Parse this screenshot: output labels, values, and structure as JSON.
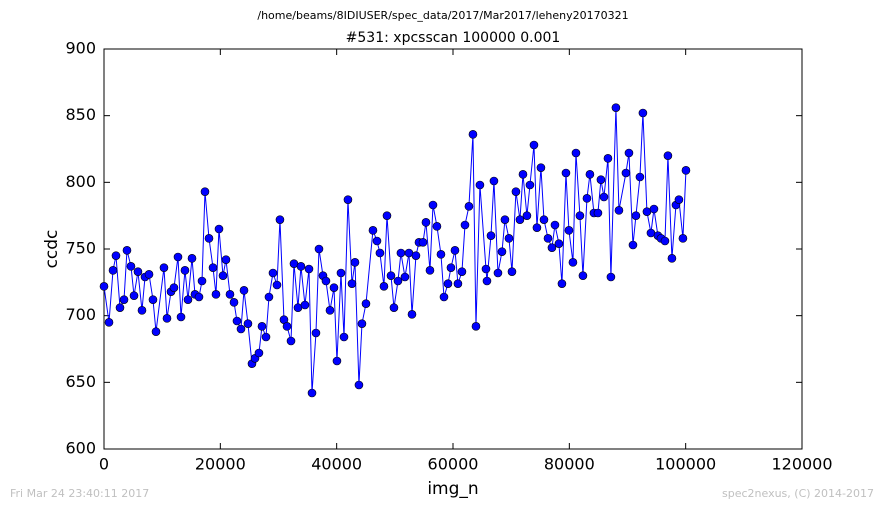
{
  "chart_data": {
    "type": "line",
    "suptitle": "/home/beams/8IDIUSER/spec_data/2017/Mar2017/leheny20170321",
    "title": "#531: xpcsscan 100000 0.001",
    "x_label": "img_n",
    "y_label": "ccdc",
    "xlim": [
      0,
      120000
    ],
    "xticks": [
      0,
      20000,
      40000,
      60000,
      80000,
      100000,
      120000
    ],
    "ylim": [
      600,
      900
    ],
    "yticks": [
      600,
      650,
      700,
      750,
      800,
      850,
      900
    ],
    "x": [
      0,
      860,
      1550,
      2060,
      2750,
      3440,
      3950,
      4640,
      5160,
      5840,
      6530,
      7050,
      7740,
      8420,
      8940,
      10310,
      10830,
      11520,
      12030,
      12720,
      13240,
      13920,
      14440,
      15130,
      15640,
      16330,
      16850,
      17360,
      18050,
      18740,
      19250,
      19770,
      20460,
      20970,
      21660,
      22350,
      22860,
      23550,
      24070,
      24750,
      25440,
      25960,
      26640,
      27160,
      27850,
      28360,
      29050,
      29740,
      30250,
      30940,
      31460,
      32150,
      32660,
      33350,
      33860,
      34550,
      35240,
      35760,
      36440,
      36960,
      37650,
      38160,
      38850,
      39540,
      40050,
      40740,
      41260,
      41940,
      42630,
      43150,
      43830,
      44350,
      45040,
      46240,
      46930,
      47440,
      48130,
      48650,
      49340,
      49850,
      50540,
      51050,
      51740,
      52430,
      52950,
      53630,
      54150,
      54840,
      55350,
      56040,
      56560,
      57240,
      57930,
      58450,
      59140,
      59650,
      60340,
      60850,
      61540,
      62060,
      62740,
      63430,
      63950,
      64630,
      65670,
      65840,
      66530,
      67040,
      67730,
      68420,
      68930,
      69620,
      70140,
      70820,
      71510,
      72030,
      72710,
      73230,
      73920,
      74430,
      75120,
      75640,
      76330,
      77010,
      77530,
      78210,
      78730,
      79420,
      79930,
      80620,
      81140,
      81820,
      82340,
      83030,
      83540,
      84230,
      84920,
      85430,
      85950,
      86640,
      87150,
      88010,
      88530,
      89730,
      90250,
      90940,
      91450,
      92140,
      92650,
      93340,
      94030,
      94550,
      95230,
      95750,
      96440,
      96950,
      97640,
      98330,
      98840,
      99530,
      100050
    ],
    "series": [
      {
        "color": "#0000ff",
        "values": [
          722,
          695,
          734,
          745,
          706,
          712,
          749,
          737,
          715,
          733,
          704,
          729,
          731,
          712,
          688,
          736,
          698,
          718,
          721,
          744,
          699,
          734,
          712,
          743,
          716,
          714,
          726,
          793,
          758,
          736,
          716,
          765,
          730,
          742,
          716,
          710,
          696,
          690,
          719,
          694,
          664,
          668,
          672,
          692,
          684,
          714,
          732,
          723,
          772,
          697,
          692,
          681,
          739,
          706,
          737,
          708,
          735,
          642,
          687,
          750,
          730,
          726,
          704,
          721,
          666,
          732,
          684,
          787,
          724,
          740,
          648,
          694,
          709,
          764,
          756,
          747,
          722,
          775,
          730,
          706,
          726,
          747,
          729,
          747,
          701,
          745,
          755,
          755,
          770,
          734,
          783,
          767,
          746,
          714,
          724,
          736,
          749,
          724,
          733,
          768,
          782,
          836,
          692,
          798,
          735,
          726,
          760,
          801,
          732,
          748,
          772,
          758,
          733,
          793,
          772,
          806,
          775,
          798,
          828,
          766,
          811,
          772,
          758,
          751,
          768,
          754,
          724,
          807,
          764,
          740,
          822,
          775,
          730,
          788,
          806,
          777,
          777,
          802,
          789,
          818,
          729,
          856,
          779,
          807,
          822,
          753,
          775,
          804,
          852,
          778,
          762,
          780,
          760,
          758,
          756,
          820,
          743,
          783,
          787,
          758,
          809
        ]
      }
    ]
  },
  "footer": {
    "left": "Fri Mar 24 23:40:11 2017",
    "right": "spec2nexus, (C) 2014-2017"
  }
}
